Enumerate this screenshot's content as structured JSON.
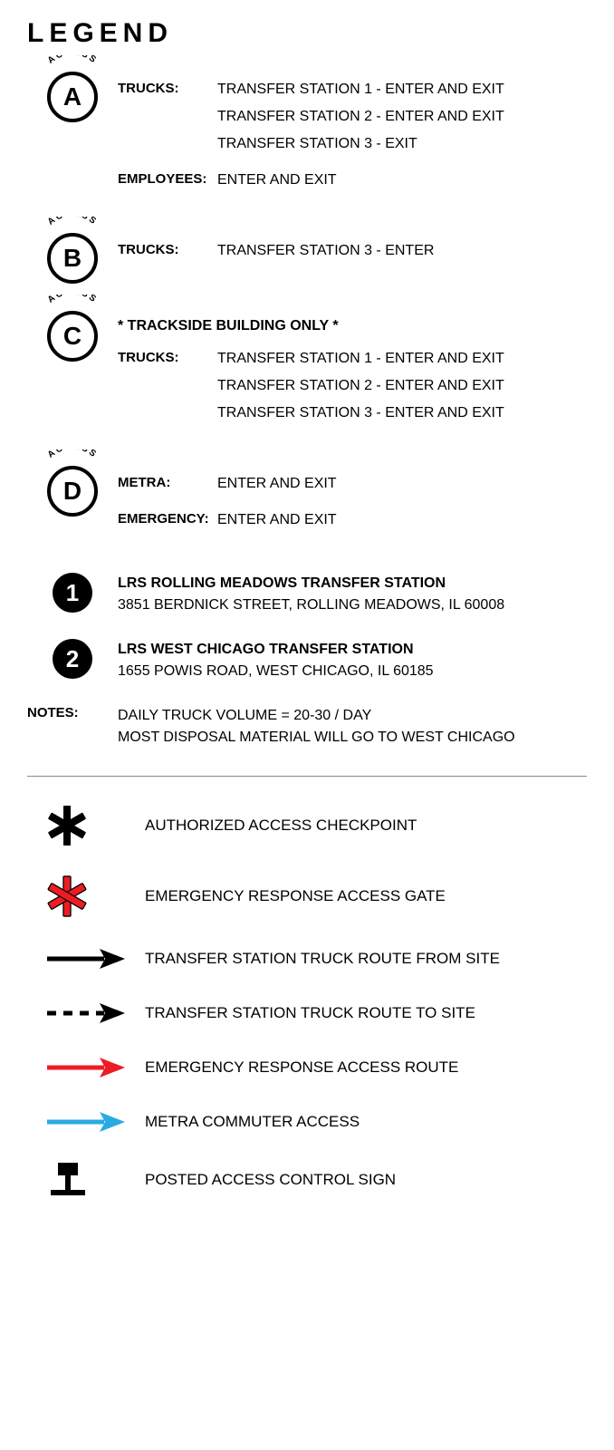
{
  "title": "LEGEND",
  "access_arc_label": "ACCESS",
  "access_points": [
    {
      "letter": "A",
      "rows": [
        {
          "label": "TRUCKS:",
          "values": [
            "TRANSFER STATION 1 - ENTER AND EXIT",
            "TRANSFER STATION 2 - ENTER AND EXIT",
            "TRANSFER STATION 3 - EXIT"
          ]
        },
        {
          "label": "EMPLOYEES:",
          "values": [
            "ENTER AND EXIT"
          ]
        }
      ]
    },
    {
      "letter": "B",
      "rows": [
        {
          "label": "TRUCKS:",
          "values": [
            "TRANSFER STATION 3 - ENTER"
          ]
        }
      ]
    },
    {
      "letter": "C",
      "note": "*  TRACKSIDE BUILDING ONLY  *",
      "rows": [
        {
          "label": "TRUCKS:",
          "values": [
            "TRANSFER STATION 1 - ENTER AND EXIT",
            "TRANSFER STATION 2 - ENTER AND EXIT",
            "TRANSFER STATION 3 - ENTER AND EXIT"
          ]
        }
      ]
    },
    {
      "letter": "D",
      "rows": [
        {
          "label": "METRA:",
          "values": [
            "ENTER AND EXIT"
          ]
        },
        {
          "label": "EMERGENCY:",
          "values": [
            "ENTER AND EXIT"
          ]
        }
      ]
    }
  ],
  "locations": [
    {
      "num": "1",
      "title": "LRS ROLLING MEADOWS TRANSFER STATION",
      "addr": "3851 BERDNICK STREET, ROLLING MEADOWS, IL  60008"
    },
    {
      "num": "2",
      "title": "LRS WEST CHICAGO TRANSFER STATION",
      "addr": "1655 POWIS ROAD, WEST CHICAGO, IL  60185"
    }
  ],
  "notes": {
    "label": "NOTES:",
    "lines": [
      "DAILY TRUCK VOLUME =  20-30 / DAY",
      "MOST DISPOSAL MATERIAL WILL GO TO WEST CHICAGO"
    ]
  },
  "symbols": [
    {
      "type": "asterisk",
      "color": "#000000",
      "stroke": "#000000",
      "label": "AUTHORIZED ACCESS  CHECKPOINT"
    },
    {
      "type": "asterisk",
      "color": "#ed1c24",
      "stroke": "#000000",
      "label": "EMERGENCY RESPONSE  ACCESS GATE"
    },
    {
      "type": "arrow",
      "color": "#000000",
      "dashed": false,
      "label": "TRANSFER  STATION TRUCK ROUTE FROM SITE"
    },
    {
      "type": "arrow",
      "color": "#000000",
      "dashed": true,
      "label": "TRANSFER  STATION TRUCK ROUTE TO SITE"
    },
    {
      "type": "arrow",
      "color": "#ed1c24",
      "dashed": false,
      "label": "EMERGENCY RESPONSE  ACCESS ROUTE"
    },
    {
      "type": "arrow",
      "color": "#29abe2",
      "dashed": false,
      "label": "METRA COMMUTER  ACCESS"
    },
    {
      "type": "sign",
      "color": "#000000",
      "label": "POSTED ACCESS  CONTROL SIGN"
    }
  ]
}
